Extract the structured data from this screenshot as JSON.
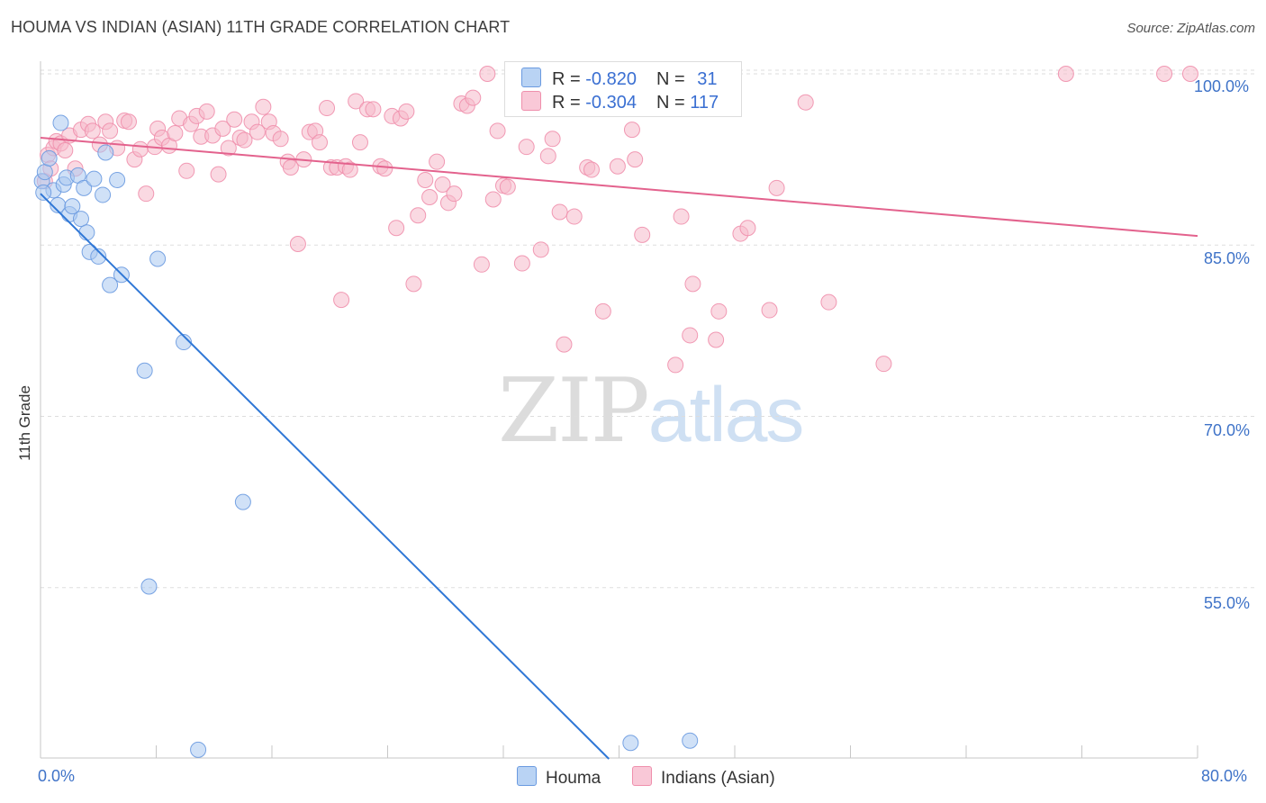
{
  "header": {
    "title": "HOUMA VS INDIAN (ASIAN) 11TH GRADE CORRELATION CHART",
    "source": "Source: ZipAtlas.com"
  },
  "legend": {
    "houma": {
      "r_label": "R = ",
      "r_value": "-0.820",
      "n_label": "N = ",
      "n_value": "31"
    },
    "indian": {
      "r_label": "R = ",
      "r_value": "-0.304",
      "n_label": "N = ",
      "n_value": "117"
    }
  },
  "bottom_legend": {
    "houma": "Houma",
    "indian": "Indians (Asian)"
  },
  "watermark": {
    "zip": "ZIP",
    "atlas": "atlas"
  },
  "colors": {
    "houma_fill": "#a9c8f0",
    "houma_stroke": "#6a9ae0",
    "houma_line": "#2f77d6",
    "indian_fill": "#f6b9cb",
    "indian_stroke": "#ef8fac",
    "indian_line": "#e3628d",
    "grid": "#dddddd",
    "tick_label": "#3f73c8"
  },
  "chart_data": {
    "type": "scatter",
    "title": "HOUMA VS INDIAN (ASIAN) 11TH GRADE CORRELATION CHART",
    "xlabel": "",
    "ylabel": "11th Grade",
    "xlim": [
      0,
      80
    ],
    "ylim": [
      40,
      103
    ],
    "x_tick_labels": [
      "0.0%",
      "80.0%"
    ],
    "y_ticks": [
      55,
      70,
      85,
      100
    ],
    "y_tick_labels": [
      "55.0%",
      "70.0%",
      "85.0%",
      "100.0%"
    ],
    "grid": true,
    "series": [
      {
        "name": "Houma",
        "trend": {
          "x": [
            0,
            39.3
          ],
          "y": [
            89.5,
            40
          ]
        },
        "points": [
          [
            0.1,
            90.6
          ],
          [
            0.3,
            91.4
          ],
          [
            0.6,
            92.6
          ],
          [
            0.9,
            89.8
          ],
          [
            1.2,
            88.5
          ],
          [
            1.4,
            95.7
          ],
          [
            1.6,
            90.3
          ],
          [
            1.8,
            90.9
          ],
          [
            2.0,
            87.7
          ],
          [
            2.2,
            88.4
          ],
          [
            2.8,
            87.3
          ],
          [
            2.6,
            91.1
          ],
          [
            3.0,
            90.0
          ],
          [
            3.2,
            86.1
          ],
          [
            3.4,
            84.4
          ],
          [
            3.7,
            90.8
          ],
          [
            4.0,
            84.0
          ],
          [
            4.3,
            89.4
          ],
          [
            4.5,
            93.1
          ],
          [
            4.8,
            81.5
          ],
          [
            5.3,
            90.7
          ],
          [
            5.6,
            82.4
          ],
          [
            7.2,
            74.0
          ],
          [
            7.5,
            55.1
          ],
          [
            8.1,
            83.8
          ],
          [
            9.9,
            76.5
          ],
          [
            10.9,
            40.8
          ],
          [
            14.0,
            62.5
          ],
          [
            40.8,
            41.4
          ],
          [
            44.9,
            41.6
          ],
          [
            0.2,
            89.6
          ]
        ]
      },
      {
        "name": "Indians (Asian)",
        "trend": {
          "x": [
            0,
            80
          ],
          "y": [
            94.4,
            85.8
          ]
        },
        "points": [
          [
            0.3,
            90.6
          ],
          [
            0.5,
            92.9
          ],
          [
            0.7,
            91.7
          ],
          [
            0.9,
            93.5
          ],
          [
            1.1,
            94.1
          ],
          [
            1.4,
            93.9
          ],
          [
            1.7,
            93.3
          ],
          [
            2.0,
            94.6
          ],
          [
            2.4,
            91.7
          ],
          [
            2.8,
            95.1
          ],
          [
            3.3,
            95.6
          ],
          [
            3.6,
            95.0
          ],
          [
            4.1,
            93.8
          ],
          [
            4.5,
            95.8
          ],
          [
            4.8,
            95.0
          ],
          [
            5.3,
            93.5
          ],
          [
            5.8,
            95.9
          ],
          [
            6.1,
            95.8
          ],
          [
            6.5,
            92.5
          ],
          [
            6.9,
            93.4
          ],
          [
            7.3,
            89.5
          ],
          [
            7.9,
            93.6
          ],
          [
            8.1,
            95.2
          ],
          [
            8.4,
            94.4
          ],
          [
            8.9,
            93.7
          ],
          [
            9.3,
            94.8
          ],
          [
            9.6,
            96.1
          ],
          [
            10.1,
            91.5
          ],
          [
            10.4,
            95.6
          ],
          [
            10.8,
            96.3
          ],
          [
            11.1,
            94.5
          ],
          [
            11.5,
            96.7
          ],
          [
            11.9,
            94.6
          ],
          [
            12.3,
            91.2
          ],
          [
            12.6,
            95.2
          ],
          [
            13.0,
            93.5
          ],
          [
            13.4,
            96.0
          ],
          [
            13.8,
            94.4
          ],
          [
            14.1,
            94.2
          ],
          [
            14.6,
            95.8
          ],
          [
            15.0,
            94.9
          ],
          [
            15.4,
            97.1
          ],
          [
            15.8,
            95.8
          ],
          [
            16.1,
            94.8
          ],
          [
            16.6,
            94.3
          ],
          [
            17.1,
            92.3
          ],
          [
            17.3,
            91.8
          ],
          [
            17.8,
            85.1
          ],
          [
            18.2,
            92.5
          ],
          [
            18.6,
            94.9
          ],
          [
            19.0,
            95.0
          ],
          [
            19.3,
            94.0
          ],
          [
            19.8,
            97.0
          ],
          [
            20.1,
            91.8
          ],
          [
            20.5,
            91.8
          ],
          [
            20.8,
            80.2
          ],
          [
            21.1,
            91.9
          ],
          [
            21.4,
            91.6
          ],
          [
            21.8,
            97.6
          ],
          [
            22.1,
            94.0
          ],
          [
            22.6,
            96.9
          ],
          [
            23.0,
            96.9
          ],
          [
            23.5,
            91.9
          ],
          [
            23.8,
            91.7
          ],
          [
            24.3,
            96.3
          ],
          [
            24.6,
            86.5
          ],
          [
            24.9,
            96.1
          ],
          [
            25.3,
            96.7
          ],
          [
            25.8,
            81.6
          ],
          [
            26.1,
            87.6
          ],
          [
            26.6,
            90.7
          ],
          [
            26.9,
            89.2
          ],
          [
            27.4,
            92.3
          ],
          [
            27.8,
            90.3
          ],
          [
            28.2,
            88.7
          ],
          [
            28.6,
            89.5
          ],
          [
            29.1,
            97.4
          ],
          [
            29.5,
            97.2
          ],
          [
            29.9,
            97.9
          ],
          [
            30.5,
            83.3
          ],
          [
            30.9,
            100.0
          ],
          [
            31.3,
            89.0
          ],
          [
            31.6,
            95.0
          ],
          [
            32.0,
            90.2
          ],
          [
            32.3,
            90.1
          ],
          [
            33.3,
            83.4
          ],
          [
            33.6,
            93.6
          ],
          [
            34.6,
            84.6
          ],
          [
            35.1,
            92.8
          ],
          [
            35.4,
            94.3
          ],
          [
            35.9,
            87.9
          ],
          [
            36.2,
            76.3
          ],
          [
            36.9,
            87.5
          ],
          [
            37.8,
            91.8
          ],
          [
            38.1,
            91.6
          ],
          [
            38.9,
            79.2
          ],
          [
            39.9,
            91.9
          ],
          [
            40.9,
            95.1
          ],
          [
            41.1,
            92.5
          ],
          [
            41.6,
            85.9
          ],
          [
            43.9,
            74.5
          ],
          [
            44.3,
            87.5
          ],
          [
            44.9,
            77.1
          ],
          [
            45.1,
            81.6
          ],
          [
            46.7,
            76.7
          ],
          [
            46.9,
            79.2
          ],
          [
            47.6,
            100.0
          ],
          [
            48.4,
            86.0
          ],
          [
            48.9,
            86.5
          ],
          [
            50.4,
            79.3
          ],
          [
            50.9,
            90.0
          ],
          [
            52.9,
            97.5
          ],
          [
            54.5,
            80.0
          ],
          [
            58.3,
            74.6
          ],
          [
            70.9,
            100.0
          ],
          [
            77.7,
            100.0
          ],
          [
            79.5,
            100.0
          ]
        ]
      }
    ]
  }
}
